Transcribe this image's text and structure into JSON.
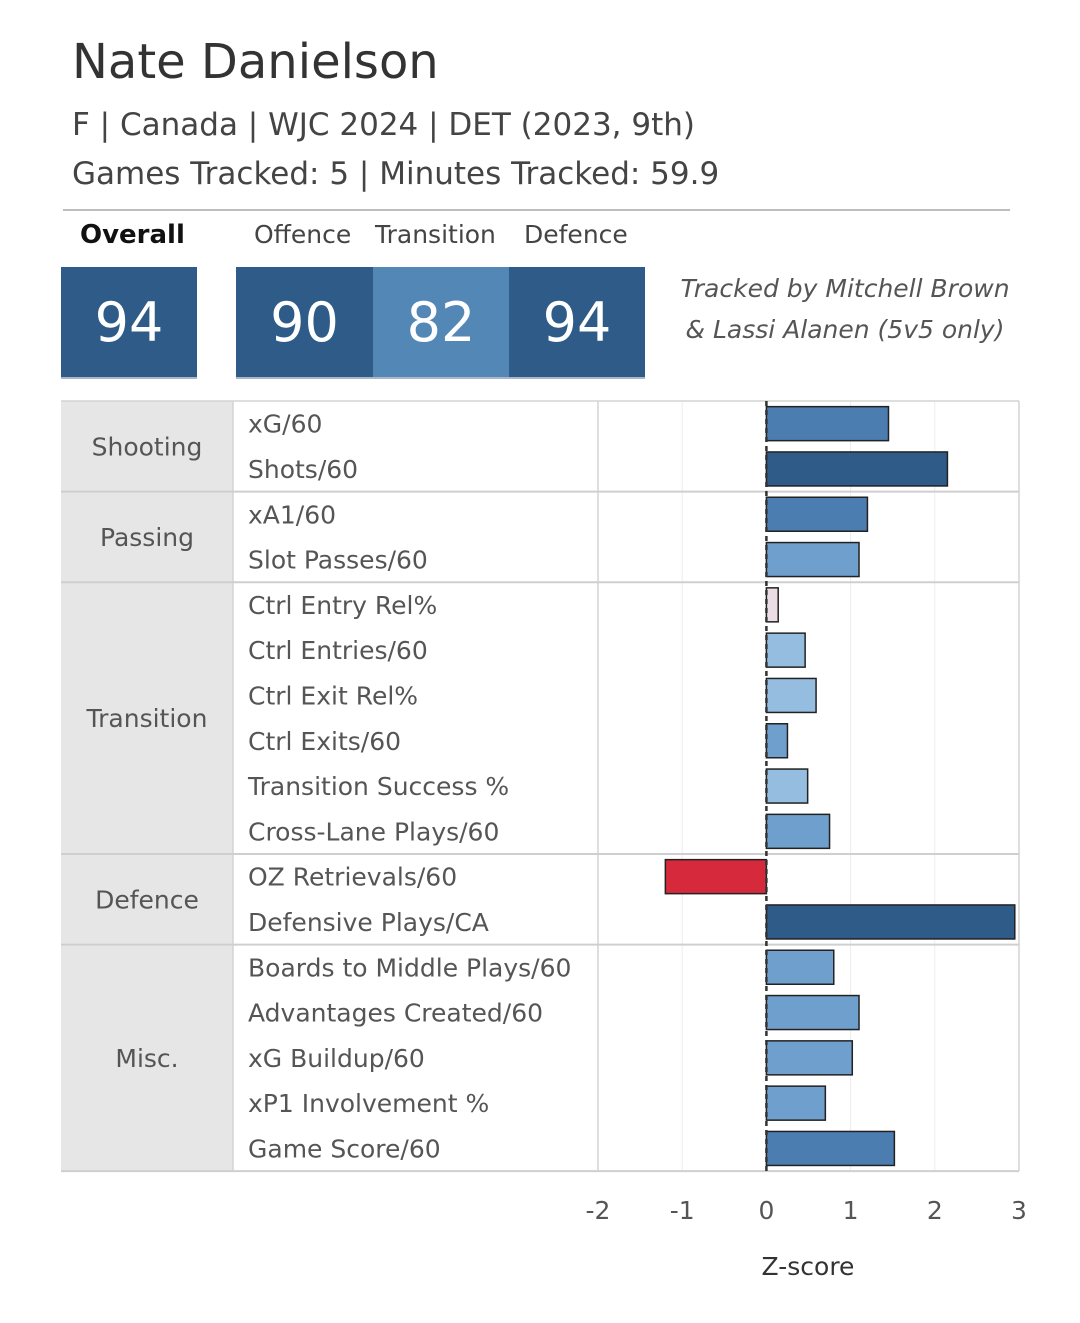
{
  "header": {
    "player_name": "Nate Danielson",
    "subtitle_line1": "F | Canada | WJC 2024 | DET (2023, 9th)",
    "subtitle_line2": "Games Tracked: 5 | Minutes Tracked: 59.9"
  },
  "scores": {
    "overall_label": "Overall",
    "overall_value": "94",
    "offence_label": "Offence",
    "offence_value": "90",
    "transition_label": "Transition",
    "transition_value": "82",
    "defence_label": "Defence",
    "defence_value": "94"
  },
  "credit": {
    "line1": "Tracked by Mitchell Brown",
    "line2": "& Lassi Alanen (5v5 only)"
  },
  "colors": {
    "dark_blue": "#2e5b88",
    "mid_blue": "#4c7db0",
    "light_blue": "#6f9fcc",
    "pale_blue": "#94bde0",
    "pale_pink": "#eadde3",
    "red": "#d62a3c",
    "group_bg": "#e6e6e6"
  },
  "chart_data": {
    "type": "bar",
    "orientation": "horizontal",
    "xlabel": "Z-score",
    "xlim": [
      -2,
      3
    ],
    "xticks": [
      "-2",
      "-1",
      "0",
      "1",
      "2",
      "3"
    ],
    "groups": [
      {
        "name": "Shooting",
        "metrics": [
          {
            "label": "xG/60",
            "value": 1.45,
            "color": "#4c7db0"
          },
          {
            "label": "Shots/60",
            "value": 2.15,
            "color": "#2e5b88"
          }
        ]
      },
      {
        "name": "Passing",
        "metrics": [
          {
            "label": "xA1/60",
            "value": 1.2,
            "color": "#4c7db0"
          },
          {
            "label": "Slot Passes/60",
            "value": 1.1,
            "color": "#6f9fcc"
          }
        ]
      },
      {
        "name": "Transition",
        "metrics": [
          {
            "label": "Ctrl Entry Rel%",
            "value": 0.14,
            "color": "#eadde3"
          },
          {
            "label": "Ctrl Entries/60",
            "value": 0.46,
            "color": "#94bde0"
          },
          {
            "label": "Ctrl Exit Rel%",
            "value": 0.59,
            "color": "#94bde0"
          },
          {
            "label": "Ctrl Exits/60",
            "value": 0.25,
            "color": "#6f9fcc"
          },
          {
            "label": "Transition Success %",
            "value": 0.49,
            "color": "#94bde0"
          },
          {
            "label": "Cross-Lane Plays/60",
            "value": 0.75,
            "color": "#6f9fcc"
          }
        ]
      },
      {
        "name": "Defence",
        "metrics": [
          {
            "label": "OZ Retrievals/60",
            "value": -1.2,
            "color": "#d62a3c"
          },
          {
            "label": "Defensive Plays/CA",
            "value": 2.95,
            "color": "#2e5b88"
          }
        ]
      },
      {
        "name": "Misc.",
        "metrics": [
          {
            "label": "Boards to Middle Plays/60",
            "value": 0.8,
            "color": "#6f9fcc"
          },
          {
            "label": "Advantages Created/60",
            "value": 1.1,
            "color": "#6f9fcc"
          },
          {
            "label": "xG Buildup/60",
            "value": 1.02,
            "color": "#6f9fcc"
          },
          {
            "label": "xP1 Involvement %",
            "value": 0.7,
            "color": "#6f9fcc"
          },
          {
            "label": "Game Score/60",
            "value": 1.52,
            "color": "#4c7db0"
          }
        ]
      }
    ]
  }
}
